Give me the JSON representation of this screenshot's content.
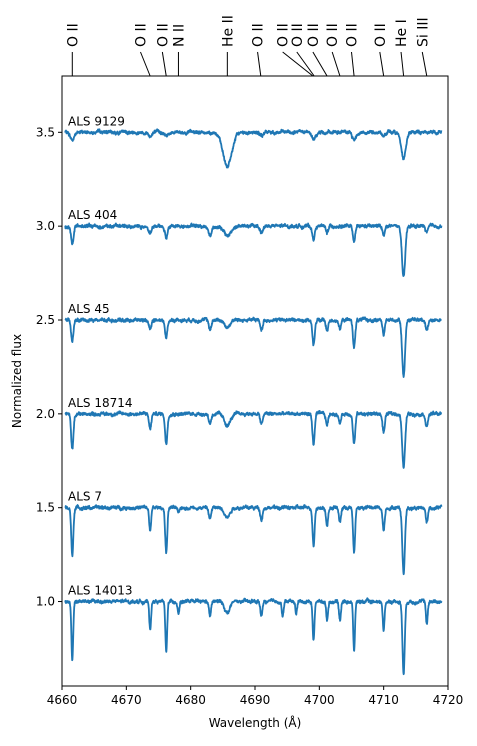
{
  "chart_data": {
    "type": "line",
    "xlabel": "Wavelength (Å)",
    "ylabel": "Normalized flux",
    "xlim": [
      4660,
      4720
    ],
    "ylim": [
      0.55,
      3.8
    ],
    "xticks": [
      4660,
      4670,
      4680,
      4690,
      4700,
      4710,
      4720
    ],
    "xtick_labels": [
      "4660",
      "4670",
      "4680",
      "4690",
      "4700",
      "4710",
      "4720"
    ],
    "yticks": [
      1.0,
      1.5,
      2.0,
      2.5,
      3.0,
      3.5
    ],
    "ytick_labels": [
      "1.0",
      "1.5",
      "2.0",
      "2.5",
      "3.0",
      "3.5"
    ],
    "grid": false,
    "legend": "none",
    "line_color": "#1f77b4",
    "x_range": [
      4660.5,
      4719
    ],
    "line_ids": [
      {
        "label": "O II",
        "wavelength": 4661.6,
        "x_text": 4661.6
      },
      {
        "label": "O II",
        "wavelength": 4673.7,
        "x_text": 4672.2
      },
      {
        "label": "O II",
        "wavelength": 4676.2,
        "x_text": 4675.6
      },
      {
        "label": "N II",
        "wavelength": 4678.1,
        "x_text": 4678.1
      },
      {
        "label": "He II",
        "wavelength": 4685.7,
        "x_text": 4685.7
      },
      {
        "label": "O II",
        "wavelength": 4690.9,
        "x_text": 4690.4
      },
      {
        "label": "O II",
        "wavelength": 4699.0,
        "x_text": 4694.3
      },
      {
        "label": "O II",
        "wavelength": 4699.2,
        "x_text": 4696.5
      },
      {
        "label": "O II",
        "wavelength": 4701.2,
        "x_text": 4699.0
      },
      {
        "label": "O II",
        "wavelength": 4703.2,
        "x_text": 4702.0
      },
      {
        "label": "O II",
        "wavelength": 4705.4,
        "x_text": 4705.0
      },
      {
        "label": "O II",
        "wavelength": 4710.0,
        "x_text": 4709.4
      },
      {
        "label": "He I",
        "wavelength": 4713.1,
        "x_text": 4712.7
      },
      {
        "label": "Si III",
        "wavelength": 4716.7,
        "x_text": 4716.0
      }
    ],
    "series": [
      {
        "name": "ALS 9129",
        "offset": 3.5,
        "lines": [
          {
            "center": 4661.6,
            "depth": 0.04,
            "width": 0.3
          },
          {
            "center": 4673.7,
            "depth": 0.02,
            "width": 0.25
          },
          {
            "center": 4676.2,
            "depth": 0.02,
            "width": 0.25
          },
          {
            "center": 4685.7,
            "depth": 0.18,
            "width": 0.7
          },
          {
            "center": 4691.0,
            "depth": 0.02,
            "width": 0.3
          },
          {
            "center": 4699.1,
            "depth": 0.04,
            "width": 0.3
          },
          {
            "center": 4705.4,
            "depth": 0.04,
            "width": 0.3
          },
          {
            "center": 4710.0,
            "depth": 0.02,
            "width": 0.25
          },
          {
            "center": 4713.1,
            "depth": 0.14,
            "width": 0.35
          }
        ]
      },
      {
        "name": "ALS 404",
        "offset": 3.0,
        "lines": [
          {
            "center": 4661.6,
            "depth": 0.1,
            "width": 0.2
          },
          {
            "center": 4673.7,
            "depth": 0.03,
            "width": 0.25
          },
          {
            "center": 4676.2,
            "depth": 0.06,
            "width": 0.2
          },
          {
            "center": 4683.0,
            "depth": 0.05,
            "width": 0.25
          },
          {
            "center": 4685.7,
            "depth": 0.05,
            "width": 0.6
          },
          {
            "center": 4691.0,
            "depth": 0.03,
            "width": 0.25
          },
          {
            "center": 4699.1,
            "depth": 0.07,
            "width": 0.2
          },
          {
            "center": 4701.2,
            "depth": 0.03,
            "width": 0.2
          },
          {
            "center": 4705.4,
            "depth": 0.08,
            "width": 0.2
          },
          {
            "center": 4710.0,
            "depth": 0.04,
            "width": 0.2
          },
          {
            "center": 4713.1,
            "depth": 0.28,
            "width": 0.25
          },
          {
            "center": 4716.7,
            "depth": 0.03,
            "width": 0.2
          }
        ]
      },
      {
        "name": "ALS 45",
        "offset": 2.5,
        "lines": [
          {
            "center": 4661.6,
            "depth": 0.12,
            "width": 0.18
          },
          {
            "center": 4673.7,
            "depth": 0.06,
            "width": 0.18
          },
          {
            "center": 4676.2,
            "depth": 0.1,
            "width": 0.18
          },
          {
            "center": 4683.0,
            "depth": 0.05,
            "width": 0.2
          },
          {
            "center": 4685.7,
            "depth": 0.04,
            "width": 0.4
          },
          {
            "center": 4691.0,
            "depth": 0.05,
            "width": 0.2
          },
          {
            "center": 4699.1,
            "depth": 0.14,
            "width": 0.18
          },
          {
            "center": 4701.2,
            "depth": 0.06,
            "width": 0.18
          },
          {
            "center": 4703.2,
            "depth": 0.05,
            "width": 0.18
          },
          {
            "center": 4705.4,
            "depth": 0.14,
            "width": 0.18
          },
          {
            "center": 4710.0,
            "depth": 0.08,
            "width": 0.18
          },
          {
            "center": 4713.1,
            "depth": 0.3,
            "width": 0.22
          },
          {
            "center": 4716.7,
            "depth": 0.05,
            "width": 0.18
          }
        ]
      },
      {
        "name": "ALS 18714",
        "offset": 2.0,
        "lines": [
          {
            "center": 4661.6,
            "depth": 0.19,
            "width": 0.18
          },
          {
            "center": 4673.7,
            "depth": 0.08,
            "width": 0.18
          },
          {
            "center": 4676.2,
            "depth": 0.16,
            "width": 0.18
          },
          {
            "center": 4683.0,
            "depth": 0.05,
            "width": 0.2
          },
          {
            "center": 4685.7,
            "depth": 0.06,
            "width": 0.5
          },
          {
            "center": 4691.0,
            "depth": 0.06,
            "width": 0.18
          },
          {
            "center": 4699.1,
            "depth": 0.16,
            "width": 0.18
          },
          {
            "center": 4701.2,
            "depth": 0.06,
            "width": 0.18
          },
          {
            "center": 4703.2,
            "depth": 0.05,
            "width": 0.18
          },
          {
            "center": 4705.4,
            "depth": 0.16,
            "width": 0.18
          },
          {
            "center": 4710.0,
            "depth": 0.1,
            "width": 0.18
          },
          {
            "center": 4713.1,
            "depth": 0.29,
            "width": 0.22
          },
          {
            "center": 4716.7,
            "depth": 0.07,
            "width": 0.18
          }
        ]
      },
      {
        "name": "ALS 7",
        "offset": 1.5,
        "lines": [
          {
            "center": 4661.6,
            "depth": 0.26,
            "width": 0.16
          },
          {
            "center": 4673.7,
            "depth": 0.12,
            "width": 0.16
          },
          {
            "center": 4676.2,
            "depth": 0.24,
            "width": 0.16
          },
          {
            "center": 4678.1,
            "depth": 0.03,
            "width": 0.16
          },
          {
            "center": 4683.0,
            "depth": 0.06,
            "width": 0.18
          },
          {
            "center": 4685.7,
            "depth": 0.05,
            "width": 0.4
          },
          {
            "center": 4691.0,
            "depth": 0.06,
            "width": 0.18
          },
          {
            "center": 4699.1,
            "depth": 0.2,
            "width": 0.16
          },
          {
            "center": 4701.2,
            "depth": 0.1,
            "width": 0.16
          },
          {
            "center": 4703.2,
            "depth": 0.08,
            "width": 0.16
          },
          {
            "center": 4705.4,
            "depth": 0.24,
            "width": 0.16
          },
          {
            "center": 4710.0,
            "depth": 0.12,
            "width": 0.16
          },
          {
            "center": 4713.1,
            "depth": 0.35,
            "width": 0.2
          },
          {
            "center": 4716.7,
            "depth": 0.08,
            "width": 0.16
          }
        ]
      },
      {
        "name": "ALS 14013",
        "offset": 1.0,
        "lines": [
          {
            "center": 4661.6,
            "depth": 0.31,
            "width": 0.14
          },
          {
            "center": 4673.7,
            "depth": 0.15,
            "width": 0.14
          },
          {
            "center": 4676.2,
            "depth": 0.27,
            "width": 0.14
          },
          {
            "center": 4678.1,
            "depth": 0.06,
            "width": 0.14
          },
          {
            "center": 4683.0,
            "depth": 0.08,
            "width": 0.16
          },
          {
            "center": 4685.7,
            "depth": 0.06,
            "width": 0.4
          },
          {
            "center": 4691.0,
            "depth": 0.08,
            "width": 0.16
          },
          {
            "center": 4694.3,
            "depth": 0.08,
            "width": 0.14
          },
          {
            "center": 4696.4,
            "depth": 0.06,
            "width": 0.14
          },
          {
            "center": 4699.1,
            "depth": 0.21,
            "width": 0.14
          },
          {
            "center": 4701.2,
            "depth": 0.1,
            "width": 0.14
          },
          {
            "center": 4703.2,
            "depth": 0.1,
            "width": 0.14
          },
          {
            "center": 4705.4,
            "depth": 0.26,
            "width": 0.14
          },
          {
            "center": 4710.0,
            "depth": 0.16,
            "width": 0.14
          },
          {
            "center": 4713.1,
            "depth": 0.38,
            "width": 0.18
          },
          {
            "center": 4716.7,
            "depth": 0.12,
            "width": 0.14
          }
        ]
      }
    ]
  }
}
